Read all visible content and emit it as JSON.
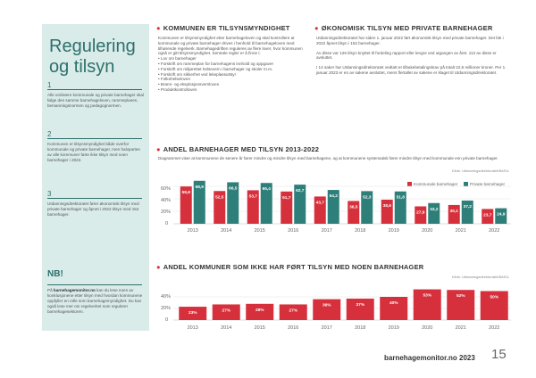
{
  "sidebar": {
    "title_line1": "Regulering",
    "title_line2": "og tilsyn",
    "points": [
      {
        "num": "1",
        "text": "Alle ordinære kommunale og private barnehager skal følge den samme barnehageloven, rammeplanen, bemanningsnormen og pedagognormen."
      },
      {
        "num": "2",
        "text": "Kommunen er tilsynsmyndighet både overfor kommunale og private barnehager, men halvparten av alle kommuner førte ikke tilsyn med noen barnehager i 2022."
      },
      {
        "num": "3",
        "text": "Utdanningsdirektoratet fører økonomisk tilsyn med private barnehager og åpnet i 2022 tilsyn med 152 barnehager."
      }
    ],
    "nb_title": "NB!",
    "nb_pre": "På ",
    "nb_site": "barnehagemonitor.no",
    "nb_post": " kan du lese noen av konklusjonene etter tilsyn med hvordan kommunene oppfyller en rolle som barnehagemyndighet. Du kan også lese mer om regelverket som regulerer barnehagesektoren."
  },
  "section1": {
    "heading": "KOMMUNEN ER TILSYNSMYNDIGHET",
    "intro": "Kommunen er tilsynsmyndighet etter barnehageloven og skal kontrollere at kommunale og private barnehager drives i henhold til barnehageloven med tilhørende regelverk. Barnehagedriften reguleres av flere lover, hvor kommunen også er gitt tilsynsmyndighet. Sentrale regler er å finne i:",
    "bullets": [
      "• Lov om barnehager",
      "• Forskrift om rammeplan for barnehagens innhold og oppgaver",
      "• Forskrift om miljørettet helsevern i barnehager og skoler m.m.",
      "• Forskrift om sikkerhet ved lekeplassutstyr",
      "• Folkehelseloven",
      "• Brann- og eksplosjonsvernloven",
      "• Produktkontrolloven"
    ]
  },
  "section2": {
    "heading": "ØKONOMISK TILSYN MED PRIVATE BARNEHAGER",
    "p1": "Utdanningsdirektoratet har siden 1. januar 2022 ført økonomisk tilsyn med private barnehager. Det ble i 2022 åpnet tilsyn i 152 barnehager.",
    "p2": "Av disse var 126 tilsyn knyttet til fordeling rapport eller lengre ved utgangen av året. 113 av disse er avsluttet.",
    "p3": "I 14 saker har Utdanningsdirektoratet vedtatt et tilbakebetalingskrav på totalt 22,6 millioner kroner. Per 1. januar 2023 er en av sakene avsluttet, mens flertallet av sakene er klaget til Utdanningsdirektoratet."
  },
  "chart1": {
    "heading": "ANDEL BARNEHAGER MED TILSYN 2013-2022",
    "description": "Diagrammet viser at kommunene de senere år fører mindre og mindre tilsyn med barnehagene, og at kommunene systematisk fører mindre tilsyn med kommunale enn private barnehager.",
    "source": "Kilde: Utdanningsdirektoratet/BASIL",
    "legend_kommunal": "Kommunale barnehager",
    "legend_private": "Private barnehager",
    "y_ticks": [
      "0",
      "20%",
      "40%",
      "60%"
    ]
  },
  "chart2": {
    "heading": "ANDEL KOMMUNER SOM IKKE HAR FØRT TILSYN MED NOEN BARNEHAGER",
    "source": "Kilde: Utdanningsdirektoratet/BASIL",
    "y_ticks": [
      "0",
      "20%",
      "40%"
    ]
  },
  "chart_data": [
    {
      "type": "bar",
      "title": "ANDEL BARNEHAGER MED TILSYN 2013-2022",
      "categories": [
        "2013",
        "2014",
        "2015",
        "2016",
        "2017",
        "2018",
        "2019",
        "2020",
        "2021",
        "2022"
      ],
      "series": [
        {
          "name": "Kommunale barnehager",
          "color": "#d7303d",
          "values": [
            59.8,
            52.5,
            53.7,
            51.7,
            43.7,
            36.5,
            38.6,
            27.9,
            30.1,
            23.7
          ],
          "labels": [
            "59,8",
            "52,5",
            "53,7",
            "51,7",
            "43,7",
            "36,5",
            "38,6",
            "27,9",
            "30,1",
            "23,7"
          ]
        },
        {
          "name": "Private barnehager",
          "color": "#2e7f79",
          "values": [
            68.9,
            66.5,
            65.4,
            62.7,
            54.2,
            52.3,
            51.8,
            33.2,
            37.2,
            24.9
          ],
          "labels": [
            "68,9",
            "66,5",
            "65,4",
            "62,7",
            "54,2",
            "52,3",
            "51,8",
            "33,2",
            "37,2",
            "24,9"
          ]
        }
      ],
      "ylim": [
        0,
        70
      ],
      "ylabel": "",
      "xlabel": ""
    },
    {
      "type": "bar",
      "title": "ANDEL KOMMUNER SOM IKKE HAR FØRT TILSYN MED NOEN BARNEHAGER",
      "categories": [
        "2013",
        "2014",
        "2015",
        "2016",
        "2017",
        "2018",
        "2019",
        "2020",
        "2021",
        "2022"
      ],
      "series": [
        {
          "name": "Andel kommuner",
          "color": "#d7303d",
          "values": [
            23,
            27,
            28,
            27,
            36,
            37,
            40,
            53,
            52,
            50
          ],
          "labels": [
            "23%",
            "27%",
            "28%",
            "27%",
            "36%",
            "37%",
            "40%",
            "53%",
            "52%",
            "50%"
          ]
        }
      ],
      "ylim": [
        0,
        55
      ],
      "ylabel": "",
      "xlabel": ""
    }
  ],
  "footer": {
    "site": "barnehagemonitor.no 2023",
    "page": "15"
  }
}
